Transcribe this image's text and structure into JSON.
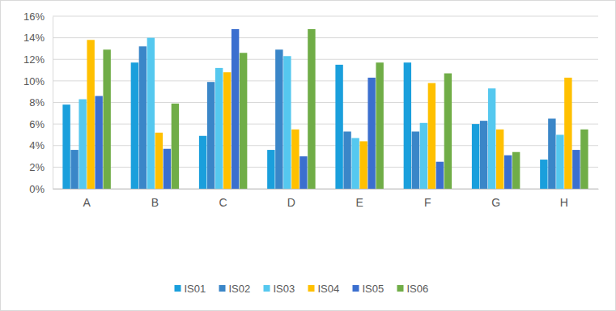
{
  "chart_data": {
    "type": "bar",
    "categories": [
      "A",
      "B",
      "C",
      "D",
      "E",
      "F",
      "G",
      "H"
    ],
    "series": [
      {
        "name": "IS01",
        "color": "#1a9fdc",
        "values": [
          7.8,
          11.7,
          4.9,
          3.6,
          11.5,
          11.7,
          6.0,
          2.7
        ]
      },
      {
        "name": "IS02",
        "color": "#3a86c8",
        "values": [
          3.6,
          13.2,
          9.9,
          12.9,
          5.3,
          5.3,
          6.3,
          6.5
        ]
      },
      {
        "name": "IS03",
        "color": "#55c8ef",
        "values": [
          8.3,
          14.0,
          11.2,
          12.3,
          4.7,
          6.1,
          9.3,
          5.0
        ]
      },
      {
        "name": "IS04",
        "color": "#ffc000",
        "values": [
          13.8,
          5.2,
          10.8,
          5.5,
          4.4,
          9.8,
          5.5,
          10.3
        ]
      },
      {
        "name": "IS05",
        "color": "#3b6fcf",
        "values": [
          8.6,
          3.7,
          14.8,
          3.0,
          10.3,
          2.5,
          3.1,
          3.6
        ]
      },
      {
        "name": "IS06",
        "color": "#70ad47",
        "values": [
          12.9,
          7.9,
          12.6,
          14.8,
          11.7,
          10.7,
          3.4,
          5.5
        ]
      }
    ],
    "ylim": [
      0,
      16
    ],
    "yticks": [
      {
        "value": 0,
        "label": "0%"
      },
      {
        "value": 2,
        "label": "2%"
      },
      {
        "value": 4,
        "label": "4%"
      },
      {
        "value": 6,
        "label": "6%"
      },
      {
        "value": 8,
        "label": "8%"
      },
      {
        "value": 10,
        "label": "10%"
      },
      {
        "value": 12,
        "label": "12%"
      },
      {
        "value": 14,
        "label": "14%"
      },
      {
        "value": 16,
        "label": "16%"
      }
    ],
    "grid": true,
    "legend": "bottom"
  }
}
